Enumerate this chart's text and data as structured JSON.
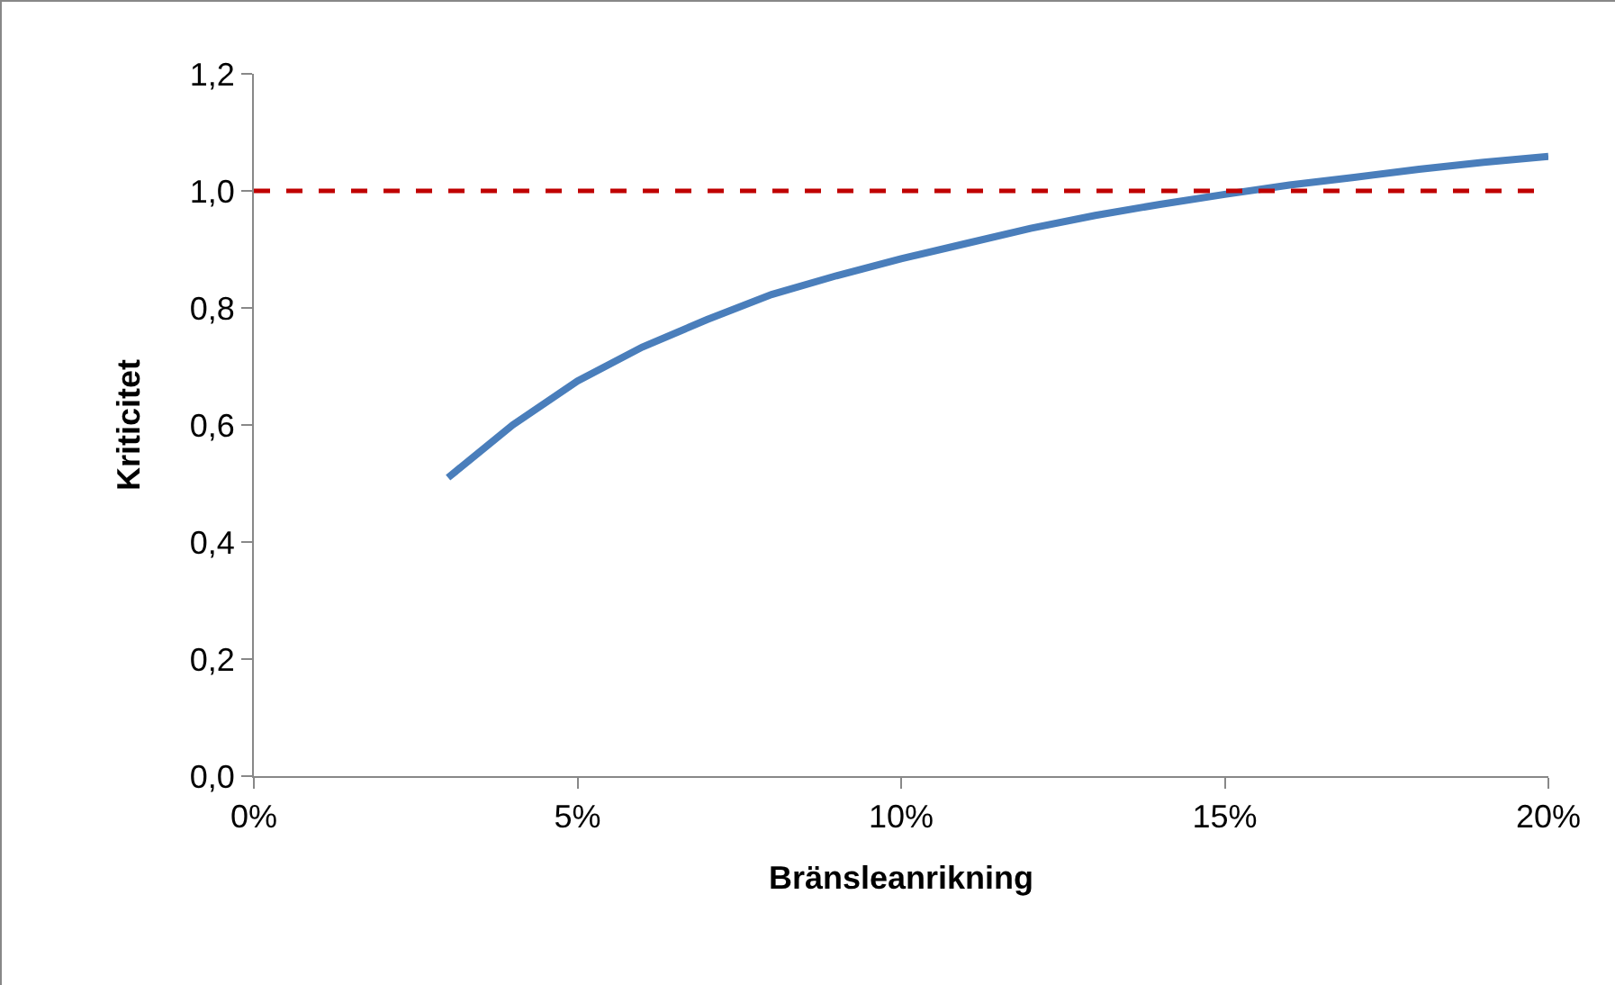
{
  "chart_data": {
    "type": "line",
    "xlabel": "Bränsleanrikning",
    "ylabel": "Kriticitet",
    "x": [
      3,
      4,
      5,
      6,
      7,
      8,
      9,
      10,
      11,
      12,
      13,
      14,
      15,
      16,
      17,
      18,
      19,
      20
    ],
    "series": [
      {
        "color": "#4a7ebb",
        "values": [
          0.51,
          0.6,
          0.675,
          0.733,
          0.78,
          0.823,
          0.855,
          0.884,
          0.91,
          0.936,
          0.958,
          0.977,
          0.994,
          1.01,
          1.023,
          1.037,
          1.049,
          1.059
        ]
      }
    ],
    "xlim": [
      0,
      20
    ],
    "xticks": [
      {
        "value": 0,
        "label": "0%"
      },
      {
        "value": 5,
        "label": "5%"
      },
      {
        "value": 10,
        "label": "10%"
      },
      {
        "value": 15,
        "label": "15%"
      },
      {
        "value": 20,
        "label": "20%"
      }
    ],
    "ylim": [
      0,
      1.2
    ],
    "yticks": [
      {
        "value": 0,
        "label": "0,0"
      },
      {
        "value": 0.2,
        "label": "0,2"
      },
      {
        "value": 0.4,
        "label": "0,4"
      },
      {
        "value": 0.6,
        "label": "0,6"
      },
      {
        "value": 0.8,
        "label": "0,8"
      },
      {
        "value": 1,
        "label": "1,0"
      },
      {
        "value": 1.2,
        "label": "1,2"
      }
    ],
    "ref_lines": [
      {
        "axis": "y",
        "value": 1,
        "color": "#c00000",
        "line_style": "dashed"
      }
    ],
    "grid": false,
    "marker": "none",
    "line_style": "solid"
  }
}
